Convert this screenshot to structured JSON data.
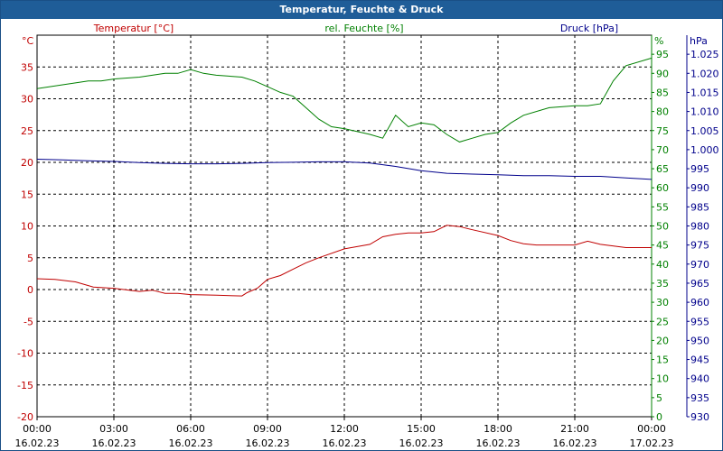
{
  "window": {
    "title": "Temperatur, Feuchte & Druck"
  },
  "colors": {
    "temperature": "#c00000",
    "humidity": "#008000",
    "pressure": "#00008b",
    "axis": "#000000",
    "grid": "#000000"
  },
  "chart_data": {
    "type": "line",
    "title": "Temperatur, Feuchte & Druck",
    "grid": true,
    "x_ticks": [
      {
        "time": "00:00",
        "date": "16.02.23"
      },
      {
        "time": "03:00",
        "date": "16.02.23"
      },
      {
        "time": "06:00",
        "date": "16.02.23"
      },
      {
        "time": "09:00",
        "date": "16.02.23"
      },
      {
        "time": "12:00",
        "date": "16.02.23"
      },
      {
        "time": "15:00",
        "date": "16.02.23"
      },
      {
        "time": "18:00",
        "date": "16.02.23"
      },
      {
        "time": "21:00",
        "date": "16.02.23"
      },
      {
        "time": "00:00",
        "date": "17.02.23"
      }
    ],
    "xlim": [
      0,
      24
    ],
    "axes": {
      "temperature": {
        "label": "Temperatur [°C]",
        "unit": "°C",
        "lim": [
          -20,
          40
        ],
        "ticks": [
          "-20",
          "-15",
          "-10",
          "-5",
          "0",
          "5",
          "10",
          "15",
          "20",
          "25",
          "30",
          "35"
        ]
      },
      "humidity": {
        "label": "rel. Feuchte [%]",
        "unit": "%",
        "lim": [
          0,
          100
        ],
        "ticks": [
          "0",
          "5",
          "10",
          "15",
          "20",
          "25",
          "30",
          "35",
          "40",
          "45",
          "50",
          "55",
          "60",
          "65",
          "70",
          "75",
          "80",
          "85",
          "90",
          "95"
        ]
      },
      "pressure": {
        "label": "Druck [hPa]",
        "unit": "hPa",
        "lim": [
          930,
          1030
        ],
        "ticks": [
          "930",
          "935",
          "940",
          "945",
          "950",
          "955",
          "960",
          "965",
          "970",
          "975",
          "980",
          "985",
          "990",
          "995",
          "1.000",
          "1.005",
          "1.010",
          "1.015",
          "1.020",
          "1.025"
        ]
      }
    },
    "series": [
      {
        "name": "Temperatur [°C]",
        "axis": "temperature",
        "x": [
          0,
          0.7,
          1.5,
          2.2,
          3,
          4,
          4.5,
          5,
          5.5,
          6,
          7,
          8,
          8.2,
          8.6,
          9,
          9.5,
          10,
          10.5,
          11,
          12,
          13,
          13.5,
          14,
          14.5,
          15,
          15.5,
          16,
          16.5,
          17,
          18,
          18.5,
          19,
          19.5,
          20,
          21,
          21.5,
          22,
          23,
          24
        ],
        "y": [
          1.7,
          1.6,
          1.2,
          0.4,
          0.2,
          -0.3,
          -0.1,
          -0.6,
          -0.6,
          -0.8,
          -0.9,
          -1.0,
          -0.5,
          0.2,
          1.6,
          2.2,
          3.2,
          4.2,
          5.0,
          6.4,
          7.1,
          8.3,
          8.7,
          8.9,
          8.9,
          9.1,
          10.1,
          9.9,
          9.4,
          8.5,
          7.7,
          7.2,
          7.0,
          7.0,
          7.0,
          7.6,
          7.1,
          6.6,
          6.6
        ]
      },
      {
        "name": "rel. Feuchte [%]",
        "axis": "humidity",
        "x": [
          0,
          1,
          2,
          2.5,
          3,
          4,
          4.5,
          5,
          5.5,
          6,
          6.5,
          7,
          8,
          8.5,
          9,
          9.5,
          10,
          10.5,
          11,
          11.5,
          12,
          13,
          13.5,
          14,
          14.5,
          15,
          15.5,
          16,
          16.5,
          17,
          17.5,
          18,
          18.5,
          19,
          20,
          21,
          21.5,
          22,
          22.5,
          23,
          24
        ],
        "y": [
          86,
          87,
          88,
          88,
          88.5,
          89,
          89.5,
          90,
          90,
          91,
          90,
          89.5,
          89,
          88,
          86.5,
          85,
          84,
          81,
          78,
          76,
          75.5,
          74,
          73,
          79,
          76,
          77,
          76.5,
          74,
          72,
          73,
          74,
          74.5,
          77,
          79,
          81,
          81.5,
          81.5,
          82,
          88,
          92,
          94
        ]
      },
      {
        "name": "Druck [hPa]",
        "axis": "pressure",
        "x": [
          0,
          1,
          2,
          3,
          4,
          5,
          6,
          7,
          8,
          9,
          10,
          11,
          12,
          13,
          14,
          15,
          16,
          17,
          18,
          19,
          20,
          21,
          22,
          23,
          24
        ],
        "y": [
          997.5,
          997.3,
          997.1,
          996.9,
          996.6,
          996.4,
          996.3,
          996.3,
          996.4,
          996.6,
          996.7,
          996.8,
          996.8,
          996.5,
          995.6,
          994.5,
          993.8,
          993.6,
          993.4,
          993.2,
          993.2,
          993.0,
          993.0,
          992.6,
          992.2
        ]
      }
    ]
  }
}
